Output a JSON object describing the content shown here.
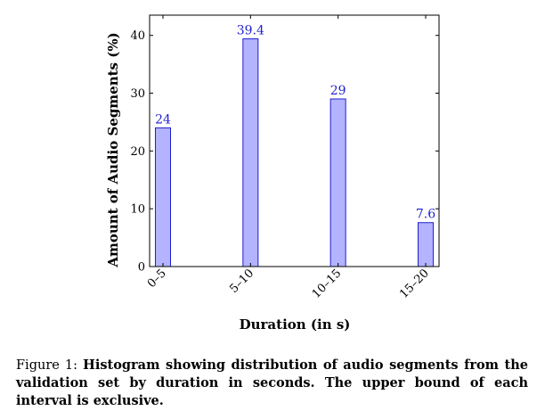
{
  "chart_data": {
    "type": "bar",
    "categories": [
      "0–5",
      "5–10",
      "10–15",
      "15–20"
    ],
    "values": [
      24,
      39.4,
      29,
      7.6
    ],
    "data_labels": [
      "24",
      "39.4",
      "29",
      "7.6"
    ],
    "title": "",
    "xlabel": "Duration (in s)",
    "ylabel": "Amount of Audio Segments (%)",
    "ylim": [
      0,
      43.5
    ],
    "yticks": [
      0,
      10,
      20,
      30,
      40
    ],
    "grid": false,
    "bar_fill": "#b3b3ff",
    "bar_stroke": "#1f1fcf",
    "label_color": "#1f1fcf"
  },
  "caption": {
    "prefix": "Figure 1:",
    "text": "Histogram showing distribution of audio segments from the validation set by duration in seconds. The upper bound of each interval is exclusive."
  }
}
